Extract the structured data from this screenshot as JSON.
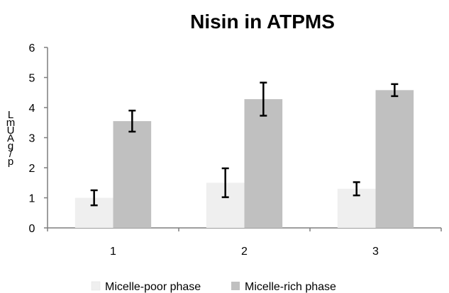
{
  "chart_data": {
    "type": "bar",
    "title": "Nisin in ATPMS",
    "xlabel": "",
    "ylabel": "LmUAg/p",
    "categories": [
      "1",
      "2",
      "3"
    ],
    "ylim": [
      0,
      6
    ],
    "yticks": [
      "0",
      "1",
      "2",
      "3",
      "4",
      "5",
      "6"
    ],
    "grid": false,
    "legend_position": "bottom",
    "series": [
      {
        "name": "Micelle-poor phase",
        "color": "#efefef",
        "values": [
          1.0,
          1.5,
          1.3
        ],
        "error": [
          0.25,
          0.48,
          0.22
        ]
      },
      {
        "name": "Micelle-rich phase",
        "color": "#c0c0c0",
        "values": [
          3.55,
          4.28,
          4.58
        ],
        "error": [
          0.35,
          0.55,
          0.2
        ]
      }
    ]
  }
}
